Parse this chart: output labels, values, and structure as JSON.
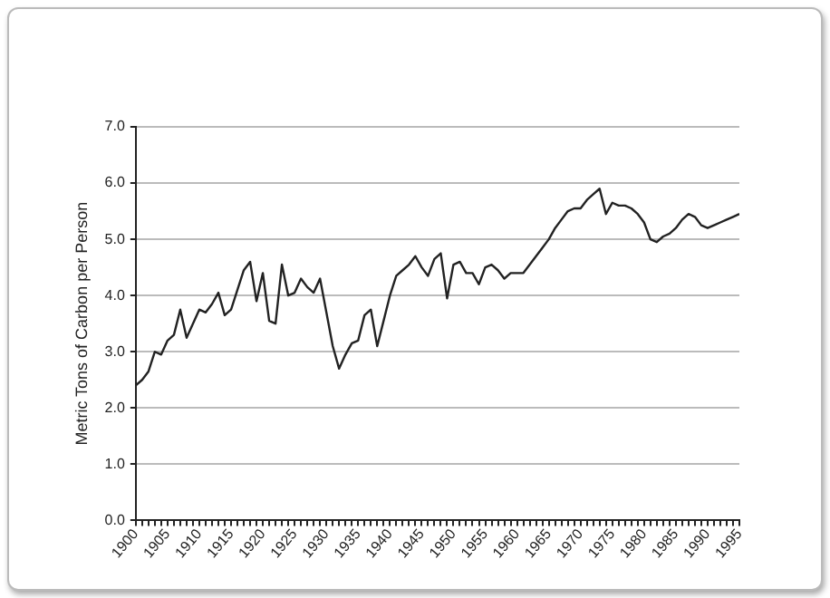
{
  "chart_data": {
    "type": "line",
    "ylabel": "Metric Tons of Carbon per Person",
    "x": [
      1900,
      1901,
      1902,
      1903,
      1904,
      1905,
      1906,
      1907,
      1908,
      1909,
      1910,
      1911,
      1912,
      1913,
      1914,
      1915,
      1916,
      1917,
      1918,
      1919,
      1920,
      1921,
      1922,
      1923,
      1924,
      1925,
      1926,
      1927,
      1928,
      1929,
      1930,
      1931,
      1932,
      1933,
      1934,
      1935,
      1936,
      1937,
      1938,
      1939,
      1940,
      1941,
      1942,
      1943,
      1944,
      1945,
      1946,
      1947,
      1948,
      1949,
      1950,
      1951,
      1952,
      1953,
      1954,
      1955,
      1956,
      1957,
      1958,
      1959,
      1960,
      1961,
      1962,
      1963,
      1964,
      1965,
      1966,
      1967,
      1968,
      1969,
      1970,
      1971,
      1972,
      1973,
      1974,
      1975,
      1976,
      1977,
      1978,
      1979,
      1980,
      1981,
      1982,
      1983,
      1984,
      1985,
      1986,
      1987,
      1988,
      1989,
      1990,
      1991,
      1992,
      1993,
      1994,
      1995
    ],
    "series": [
      {
        "color": "#222222",
        "values": [
          2.4,
          2.5,
          2.65,
          3.0,
          2.95,
          3.2,
          3.3,
          3.75,
          3.25,
          3.5,
          3.75,
          3.7,
          3.85,
          4.05,
          3.65,
          3.75,
          4.1,
          4.45,
          4.6,
          3.9,
          4.4,
          3.55,
          3.5,
          4.55,
          4.0,
          4.05,
          4.3,
          4.15,
          4.05,
          4.3,
          3.7,
          3.1,
          2.7,
          2.95,
          3.15,
          3.2,
          3.65,
          3.75,
          3.1,
          3.55,
          4.0,
          4.35,
          4.45,
          4.55,
          4.7,
          4.5,
          4.35,
          4.65,
          4.75,
          3.95,
          4.55,
          4.6,
          4.4,
          4.4,
          4.2,
          4.5,
          4.55,
          4.45,
          4.3,
          4.4,
          4.4,
          4.4,
          4.55,
          4.7,
          4.85,
          5.0,
          5.2,
          5.35,
          5.5,
          5.55,
          5.55,
          5.7,
          5.8,
          5.9,
          5.45,
          5.65,
          5.6,
          5.6,
          5.55,
          5.45,
          5.3,
          5.0,
          4.95,
          5.05,
          5.1,
          5.2,
          5.35,
          5.45,
          5.4,
          5.25,
          5.2,
          5.25,
          5.3,
          5.35,
          5.4,
          5.45
        ]
      }
    ],
    "xlim": [
      1900,
      1995
    ],
    "xticks": [
      1900,
      {
        "value": 1901,
        "label": null
      },
      {
        "value": 1902,
        "label": null
      },
      {
        "value": 1903,
        "label": null
      },
      {
        "value": 1904,
        "label": null
      },
      1905,
      {
        "value": 1906,
        "label": null
      },
      {
        "value": 1907,
        "label": null
      },
      {
        "value": 1908,
        "label": null
      },
      {
        "value": 1909,
        "label": null
      },
      1910,
      {
        "value": 1911,
        "label": null
      },
      {
        "value": 1912,
        "label": null
      },
      {
        "value": 1913,
        "label": null
      },
      {
        "value": 1914,
        "label": null
      },
      1915,
      {
        "value": 1916,
        "label": null
      },
      {
        "value": 1917,
        "label": null
      },
      {
        "value": 1918,
        "label": null
      },
      {
        "value": 1919,
        "label": null
      },
      1920,
      {
        "value": 1921,
        "label": null
      },
      {
        "value": 1922,
        "label": null
      },
      {
        "value": 1923,
        "label": null
      },
      {
        "value": 1924,
        "label": null
      },
      1925,
      {
        "value": 1926,
        "label": null
      },
      {
        "value": 1927,
        "label": null
      },
      {
        "value": 1928,
        "label": null
      },
      {
        "value": 1929,
        "label": null
      },
      1930,
      {
        "value": 1931,
        "label": null
      },
      {
        "value": 1932,
        "label": null
      },
      {
        "value": 1933,
        "label": null
      },
      {
        "value": 1934,
        "label": null
      },
      1935,
      {
        "value": 1936,
        "label": null
      },
      {
        "value": 1937,
        "label": null
      },
      {
        "value": 1938,
        "label": null
      },
      {
        "value": 1939,
        "label": null
      },
      1940,
      {
        "value": 1941,
        "label": null
      },
      {
        "value": 1942,
        "label": null
      },
      {
        "value": 1943,
        "label": null
      },
      {
        "value": 1944,
        "label": null
      },
      1945,
      {
        "value": 1946,
        "label": null
      },
      {
        "value": 1947,
        "label": null
      },
      {
        "value": 1948,
        "label": null
      },
      {
        "value": 1949,
        "label": null
      },
      1950,
      {
        "value": 1951,
        "label": null
      },
      {
        "value": 1952,
        "label": null
      },
      {
        "value": 1953,
        "label": null
      },
      {
        "value": 1954,
        "label": null
      },
      1955,
      {
        "value": 1956,
        "label": null
      },
      {
        "value": 1957,
        "label": null
      },
      {
        "value": 1958,
        "label": null
      },
      {
        "value": 1959,
        "label": null
      },
      1960,
      {
        "value": 1961,
        "label": null
      },
      {
        "value": 1962,
        "label": null
      },
      {
        "value": 1963,
        "label": null
      },
      {
        "value": 1964,
        "label": null
      },
      1965,
      {
        "value": 1966,
        "label": null
      },
      {
        "value": 1967,
        "label": null
      },
      {
        "value": 1968,
        "label": null
      },
      {
        "value": 1969,
        "label": null
      },
      1970,
      {
        "value": 1971,
        "label": null
      },
      {
        "value": 1972,
        "label": null
      },
      {
        "value": 1973,
        "label": null
      },
      {
        "value": 1974,
        "label": null
      },
      1975,
      {
        "value": 1976,
        "label": null
      },
      {
        "value": 1977,
        "label": null
      },
      {
        "value": 1978,
        "label": null
      },
      {
        "value": 1979,
        "label": null
      },
      1980,
      {
        "value": 1981,
        "label": null
      },
      {
        "value": 1982,
        "label": null
      },
      {
        "value": 1983,
        "label": null
      },
      {
        "value": 1984,
        "label": null
      },
      1985,
      {
        "value": 1986,
        "label": null
      },
      {
        "value": 1987,
        "label": null
      },
      {
        "value": 1988,
        "label": null
      },
      {
        "value": 1989,
        "label": null
      },
      1990,
      {
        "value": 1991,
        "label": null
      },
      {
        "value": 1992,
        "label": null
      },
      {
        "value": 1993,
        "label": null
      },
      {
        "value": 1994,
        "label": null
      },
      1995
    ],
    "ylim": [
      0,
      7
    ],
    "yticks": [
      {
        "value": 0,
        "label": "0.0"
      },
      {
        "value": 1,
        "label": "1.0"
      },
      {
        "value": 2,
        "label": "2.0"
      },
      {
        "value": 3,
        "label": "3.0"
      },
      {
        "value": 4,
        "label": "4.0"
      },
      {
        "value": 5,
        "label": "5.0"
      },
      {
        "value": 6,
        "label": "6.0"
      },
      {
        "value": 7,
        "label": "7.0"
      }
    ],
    "grid": "y",
    "legend": false,
    "marker": "none",
    "line_style": "solid"
  }
}
